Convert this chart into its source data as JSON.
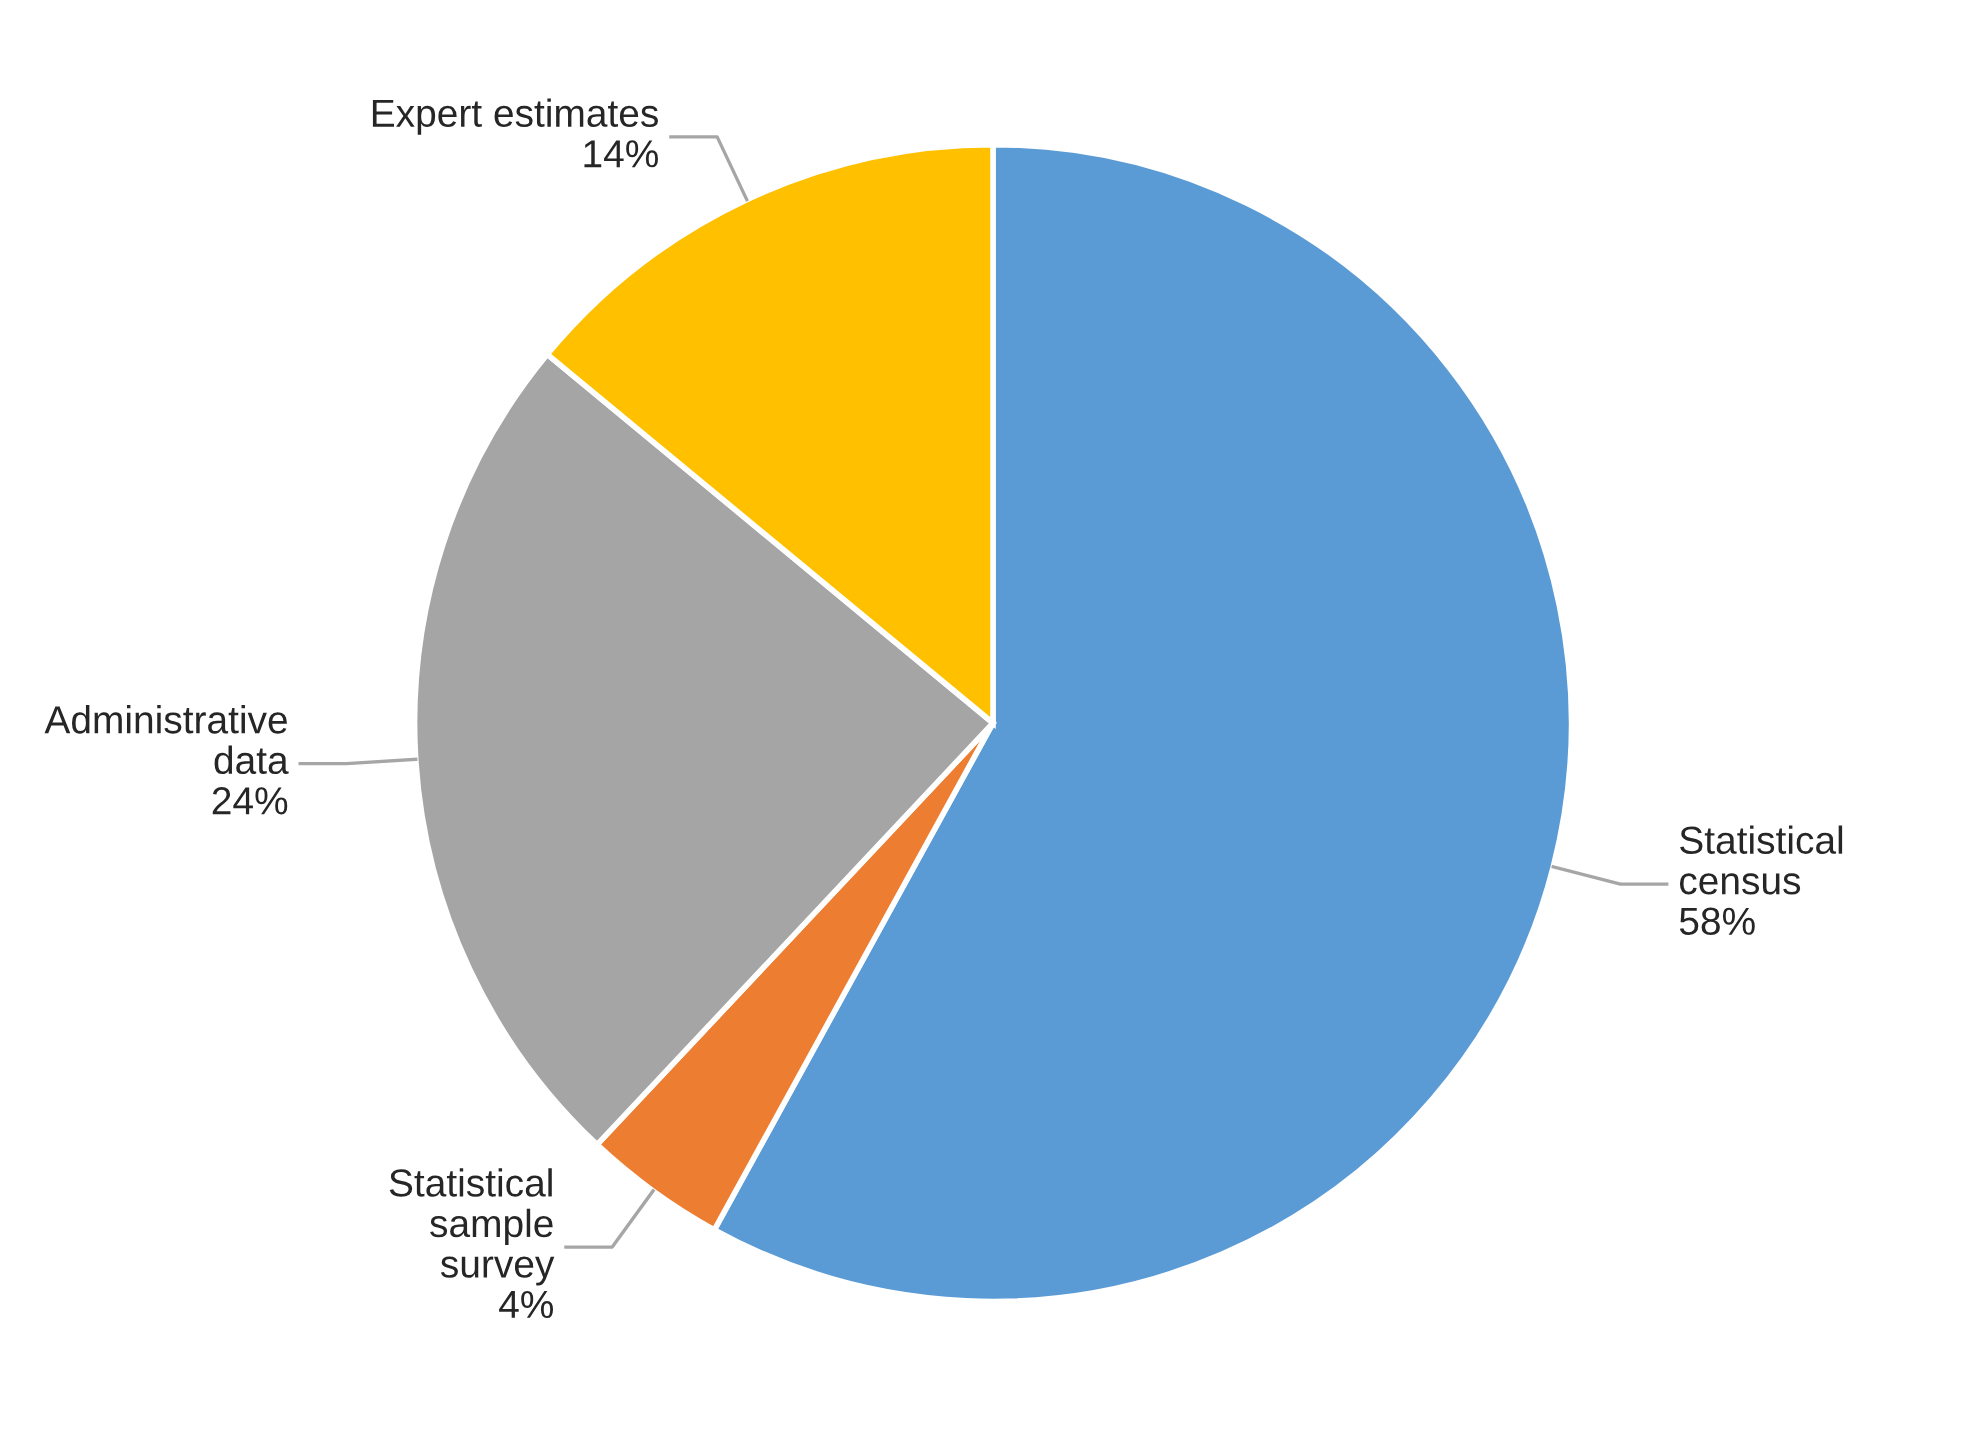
{
  "chart_data": {
    "type": "pie",
    "categories": [
      "Statistical\ncensus",
      "Statistical\nsample\nsurvey",
      "Administrative\ndata",
      "Expert estimates"
    ],
    "values": [
      58,
      4,
      24,
      14
    ],
    "value_labels": [
      "58%",
      "4%",
      "24%",
      "14%"
    ],
    "colors": [
      "#5b9bd5",
      "#ed7d31",
      "#a5a5a5",
      "#ffc000"
    ]
  }
}
